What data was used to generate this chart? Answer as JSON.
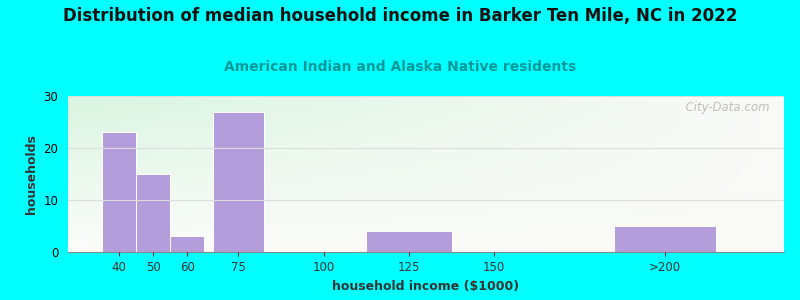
{
  "title": "Distribution of median household income in Barker Ten Mile, NC in 2022",
  "subtitle": "American Indian and Alaska Native residents",
  "xlabel": "household income ($1000)",
  "ylabel": "households",
  "bg_color": "#00FFFF",
  "bar_color": "#b39ddb",
  "categories": [
    "40",
    "50",
    "60",
    "75",
    "100",
    "125",
    "150",
    ">200"
  ],
  "values": [
    23,
    15,
    3,
    27,
    0,
    4,
    0,
    5
  ],
  "bar_positions": [
    40,
    50,
    60,
    75,
    100,
    125,
    150,
    200
  ],
  "bar_widths": [
    10,
    10,
    10,
    15,
    25,
    25,
    25,
    30
  ],
  "xlim": [
    25,
    235
  ],
  "ylim": [
    0,
    30
  ],
  "yticks": [
    0,
    10,
    20,
    30
  ],
  "xticks": [
    40,
    50,
    60,
    75,
    100,
    125,
    150,
    200
  ],
  "xticklabels": [
    "40",
    "50",
    "60",
    "75",
    "100",
    "125",
    "150",
    ">200"
  ],
  "title_fontsize": 12,
  "subtitle_fontsize": 10,
  "subtitle_color": "#009999",
  "axis_label_fontsize": 9,
  "tick_fontsize": 8.5,
  "watermark_text": "  City-Data.com",
  "watermark_color": "#aaaaaa",
  "grid_color": "#dddddd",
  "bg_left_color": "#d4edda",
  "bg_right_color": "#f5f5f0"
}
